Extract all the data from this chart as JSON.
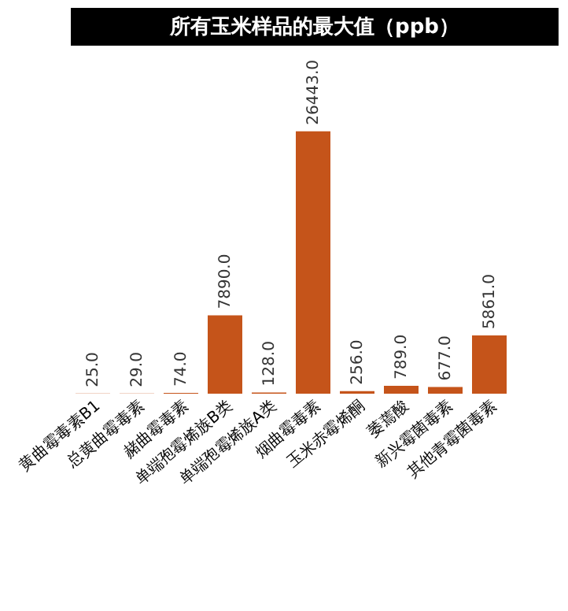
{
  "chart_data": {
    "type": "bar",
    "title": "所有玉米样品的最大值（ppb）",
    "categories": [
      "黄曲霉毒素B1",
      "总黄曲霉毒素",
      "赭曲霉毒素",
      "单端孢霉烯族B类",
      "单端孢霉烯族A类",
      "烟曲霉毒素",
      "玉米赤霉烯酮",
      "萎蔫酸",
      "新兴霉菌毒素",
      "其他青霉菌毒素"
    ],
    "values": [
      25.0,
      29.0,
      74.0,
      7890.0,
      128.0,
      26443.0,
      256.0,
      789.0,
      677.0,
      5861.0
    ],
    "value_labels": [
      "25.0",
      "29.0",
      "74.0",
      "7890.0",
      "128.0",
      "26443.0",
      "256.0",
      "789.0",
      "677.0",
      "5861.0"
    ],
    "color": "#c5541a",
    "grid": false
  }
}
